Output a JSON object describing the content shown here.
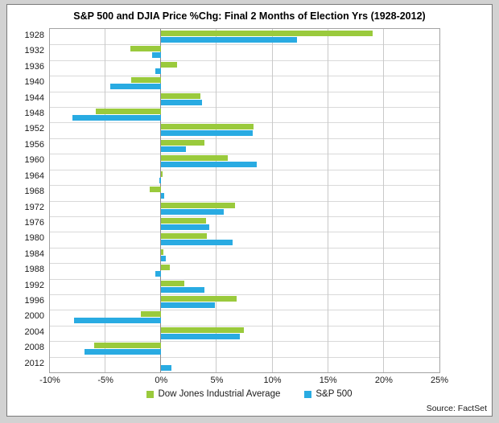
{
  "header": {
    "title": "S&P 500 and DJIA Price %Chg: Final 2 Months of Election Yrs (1928-2012)"
  },
  "footer": {
    "source": "Source: FactSet"
  },
  "legend": [
    {
      "id": "djia",
      "label": "Dow Jones Industrial Average",
      "color": "#9ACA3C"
    },
    {
      "id": "sp500",
      "label": "S&P 500",
      "color": "#29ABE2"
    }
  ],
  "colors": {
    "djia_green": "#9ACA3C",
    "sp500_blue": "#29ABE2",
    "gridline": "#c9c9c9",
    "zero_axis": "#8c8c8c",
    "plot_border": "#a3a3a3",
    "panel_border": "#7a7a7a",
    "outer_background": "#d2d2d2"
  },
  "chart_data": {
    "type": "bar",
    "orientation": "horizontal",
    "title": "S&P 500 and DJIA Price %Chg: Final 2 Months of Election Yrs (1928-2012)",
    "xlabel": "",
    "ylabel": "",
    "xlim": [
      -10,
      25
    ],
    "grid": true,
    "legend_position": "bottom",
    "x_tick_labels": [
      "-10%",
      "-5%",
      "0%",
      "5%",
      "10%",
      "15%",
      "20%",
      "25%"
    ],
    "x_tick_values": [
      -10,
      -5,
      0,
      5,
      10,
      15,
      20,
      25
    ],
    "categories": [
      "1928",
      "1932",
      "1936",
      "1940",
      "1944",
      "1948",
      "1952",
      "1956",
      "1960",
      "1964",
      "1968",
      "1972",
      "1976",
      "1980",
      "1984",
      "1988",
      "1992",
      "1996",
      "2000",
      "2004",
      "2008",
      "2012"
    ],
    "series": [
      {
        "name": "Dow Jones Industrial Average",
        "color": "#9ACA3C",
        "values": [
          19.0,
          -2.8,
          1.4,
          -2.7,
          3.5,
          -5.9,
          8.3,
          3.9,
          6.0,
          0.1,
          -1.0,
          6.6,
          4.0,
          4.1,
          0.2,
          0.8,
          2.1,
          6.8,
          -1.8,
          7.4,
          -6.0,
          0.0
        ]
      },
      {
        "name": "S&P 500",
        "color": "#29ABE2",
        "values": [
          12.2,
          -0.8,
          -0.5,
          -4.6,
          3.7,
          -8.0,
          8.2,
          2.2,
          8.6,
          -0.2,
          0.3,
          5.6,
          4.3,
          6.4,
          0.4,
          -0.5,
          3.9,
          4.8,
          -7.8,
          7.1,
          -6.9,
          0.9
        ]
      }
    ]
  }
}
